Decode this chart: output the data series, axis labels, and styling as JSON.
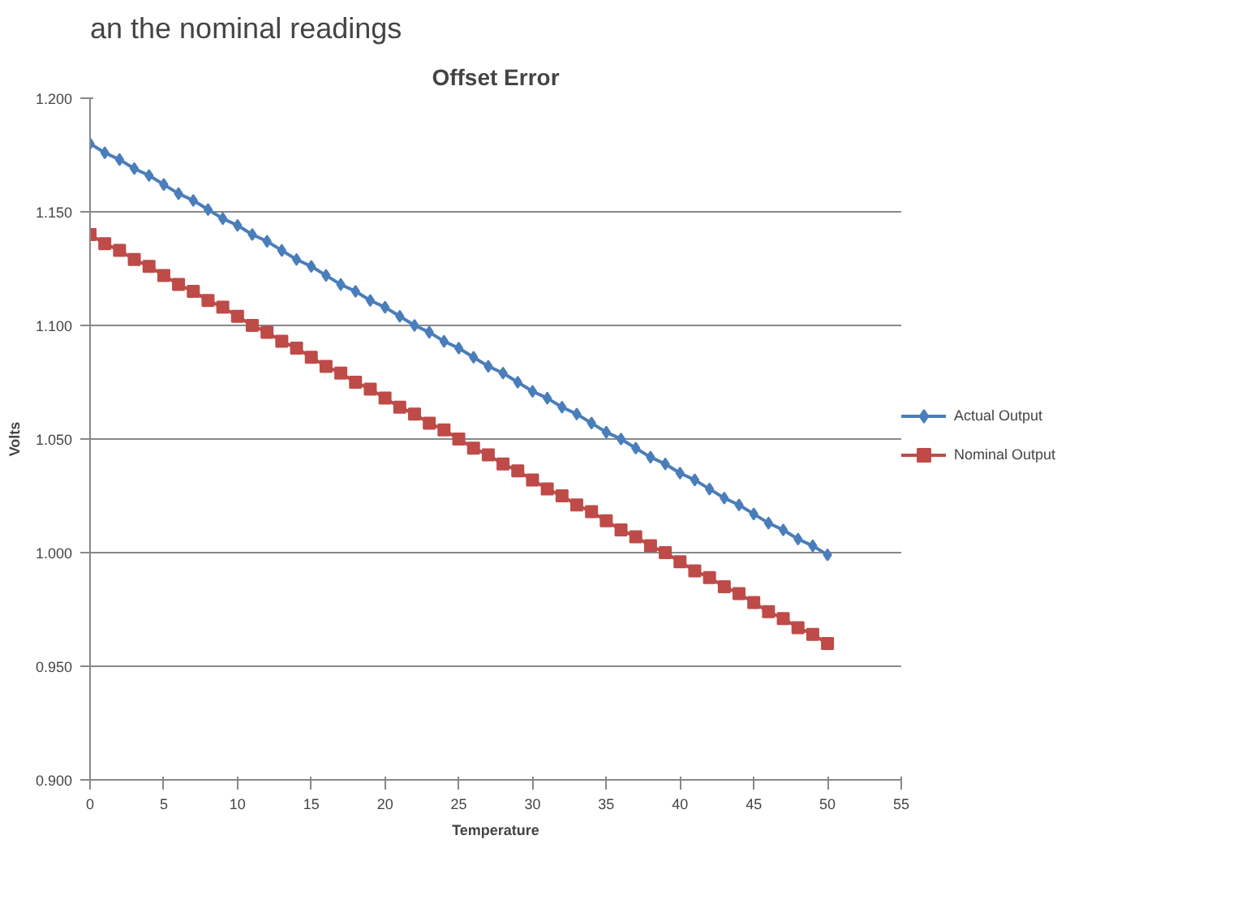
{
  "chart_data": {
    "type": "line",
    "title": "Offset Error",
    "xlabel": "Temperature",
    "ylabel": "Volts",
    "annotations": [
      "an the nominal readings"
    ],
    "x": [
      0,
      1,
      2,
      3,
      4,
      5,
      6,
      7,
      8,
      9,
      10,
      11,
      12,
      13,
      14,
      15,
      16,
      17,
      18,
      19,
      20,
      21,
      22,
      23,
      24,
      25,
      26,
      27,
      28,
      29,
      30,
      31,
      32,
      33,
      34,
      35,
      36,
      37,
      38,
      39,
      40,
      41,
      42,
      43,
      44,
      45,
      46,
      47,
      48,
      49,
      50
    ],
    "series": [
      {
        "name": "Actual Output",
        "color": "#4a7ebb",
        "marker": "diamond",
        "values": [
          1.18,
          1.176,
          1.173,
          1.169,
          1.166,
          1.162,
          1.158,
          1.155,
          1.151,
          1.147,
          1.144,
          1.14,
          1.137,
          1.133,
          1.129,
          1.126,
          1.122,
          1.118,
          1.115,
          1.111,
          1.108,
          1.104,
          1.1,
          1.097,
          1.093,
          1.09,
          1.086,
          1.082,
          1.079,
          1.075,
          1.071,
          1.068,
          1.064,
          1.061,
          1.057,
          1.053,
          1.05,
          1.046,
          1.042,
          1.039,
          1.035,
          1.032,
          1.028,
          1.024,
          1.021,
          1.017,
          1.013,
          1.01,
          1.006,
          1.003,
          0.999
        ]
      },
      {
        "name": "Nominal Output",
        "color": "#be4b48",
        "marker": "square",
        "values": [
          1.14,
          1.136,
          1.133,
          1.129,
          1.126,
          1.122,
          1.118,
          1.115,
          1.111,
          1.108,
          1.104,
          1.1,
          1.097,
          1.093,
          1.09,
          1.086,
          1.082,
          1.079,
          1.075,
          1.072,
          1.068,
          1.064,
          1.061,
          1.057,
          1.054,
          1.05,
          1.046,
          1.043,
          1.039,
          1.036,
          1.032,
          1.028,
          1.025,
          1.021,
          1.018,
          1.014,
          1.01,
          1.007,
          1.003,
          1.0,
          0.996,
          0.992,
          0.989,
          0.985,
          0.982,
          0.978,
          0.974,
          0.971,
          0.967,
          0.964,
          0.96
        ]
      }
    ],
    "xlim": [
      0,
      55
    ],
    "xticks": [
      0,
      5,
      10,
      15,
      20,
      25,
      30,
      35,
      40,
      45,
      50,
      55
    ],
    "ylim": [
      0.9,
      1.2
    ],
    "yticks": [
      {
        "value": 0.9,
        "label": "0.900"
      },
      {
        "value": 0.95,
        "label": "0.950"
      },
      {
        "value": 1.0,
        "label": "1.000"
      },
      {
        "value": 1.05,
        "label": "1.050"
      },
      {
        "value": 1.1,
        "label": "1.100"
      },
      {
        "value": 1.15,
        "label": "1.150"
      },
      {
        "value": 1.2,
        "label": "1.200"
      }
    ],
    "grid": "y",
    "legend": "right",
    "line_style": "solid"
  }
}
